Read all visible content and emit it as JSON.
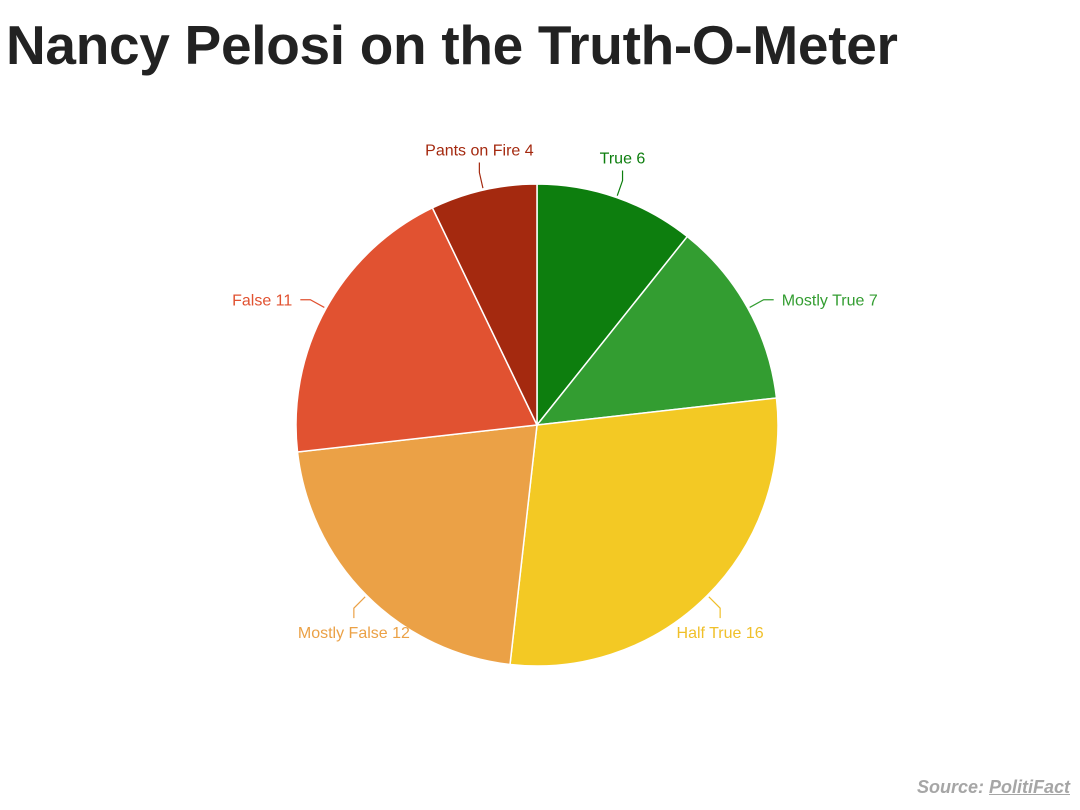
{
  "page": {
    "title": "Nancy Pelosi on the Truth-O-Meter",
    "source_prefix": "Source: ",
    "source_link": "PolitiFact"
  },
  "chart_data": {
    "type": "pie",
    "title": "Nancy Pelosi on the Truth-O-Meter",
    "start_angle_deg": 0,
    "direction": "clockwise",
    "categories": [
      "True",
      "Mostly True",
      "Half True",
      "Mostly False",
      "False",
      "Pants on Fire"
    ],
    "values": [
      6,
      7,
      16,
      12,
      11,
      4
    ],
    "colors": [
      "#0d7e0e",
      "#339d31",
      "#f3c924",
      "#eba146",
      "#e15231",
      "#a4290f"
    ],
    "label_colors": [
      "#0d7e0e",
      "#339d31",
      "#f0c02a",
      "#eba146",
      "#e15231",
      "#a4290f"
    ],
    "labels": [
      "True 6",
      "Mostly True 7",
      "Half True 16",
      "Mostly False 12",
      "False 11",
      "Pants on Fire 4"
    ],
    "legend": "none (data labels with leader lines)",
    "source": "Source: PolitiFact"
  }
}
